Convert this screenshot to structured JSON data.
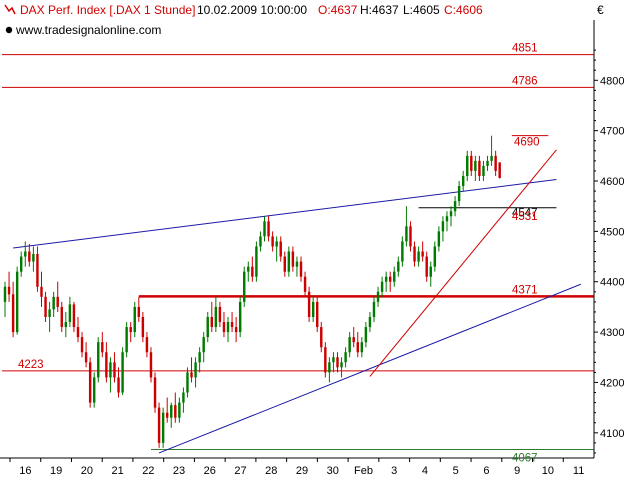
{
  "header": {
    "instrument": "DAX Perf. Index [.DAX  1 Stunde]",
    "datetime": "10.02.2009 10:00:00",
    "open_label": "O:4637",
    "high_label": "H:4637",
    "low_label": "L:4605",
    "close_label": "C:4606",
    "source": "www.tradesignalonline.com",
    "currency": "€"
  },
  "colors": {
    "up_candle": "#007a00",
    "down_candle": "#cc0000",
    "support_line": "#d00000",
    "trend_blue": "#1a1aa8",
    "bottom_line": "#2e7d2e",
    "axis": "#000000",
    "header_red": "#d00000"
  },
  "chart_data": {
    "type": "candlestick",
    "timeframe": "1 Stunde",
    "ylim": [
      4050,
      4880
    ],
    "yticks": [
      4100,
      4200,
      4300,
      4400,
      4500,
      4600,
      4700,
      4800
    ],
    "xticks": [
      "16",
      "19",
      "20",
      "21",
      "22",
      "23",
      "26",
      "27",
      "28",
      "29",
      "30",
      "Feb",
      "3",
      "4",
      "5",
      "6",
      "9",
      "10",
      "11"
    ],
    "levels": [
      {
        "value": 4851,
        "label": "4851"
      },
      {
        "value": 4786,
        "label": "4786"
      },
      {
        "value": 4690,
        "label": "4690"
      },
      {
        "value": 4547,
        "label": "4547"
      },
      {
        "value": 4531,
        "label": "4531"
      },
      {
        "value": 4371,
        "label": "4371"
      },
      {
        "value": 4223,
        "label": "4223"
      },
      {
        "value": 4067,
        "label": "4067"
      }
    ],
    "trendlines": [
      {
        "from": {
          "bar": 2,
          "price": 4467
        },
        "to": {
          "bar": 136,
          "price": 4603
        }
      },
      {
        "from": {
          "bar": 38,
          "price": 4060
        },
        "to": {
          "bar": 142,
          "price": 4395
        }
      },
      {
        "from": {
          "bar": 90,
          "price": 4212
        },
        "to": {
          "bar": 136,
          "price": 4662
        }
      }
    ],
    "series": [
      {
        "ohlc": [
          [
            4360,
            4400,
            4330,
            4390
          ],
          [
            4390,
            4420,
            4360,
            4375
          ],
          [
            4375,
            4400,
            4290,
            4300
          ],
          [
            4300,
            4430,
            4295,
            4420
          ],
          [
            4420,
            4460,
            4410,
            4450
          ],
          [
            4450,
            4480,
            4430,
            4460
          ],
          [
            4460,
            4475,
            4430,
            4440
          ],
          [
            4440,
            4470,
            4420,
            4455
          ],
          [
            4455,
            4470,
            4380,
            4390
          ],
          [
            4390,
            4420,
            4350,
            4370
          ],
          [
            4370,
            4380,
            4320,
            4330
          ],
          [
            4330,
            4360,
            4300,
            4345
          ],
          [
            4345,
            4380,
            4330,
            4370
          ],
          [
            4370,
            4400,
            4340,
            4350
          ],
          [
            4350,
            4360,
            4300,
            4310
          ],
          [
            4310,
            4340,
            4290,
            4320
          ],
          [
            4320,
            4370,
            4310,
            4355
          ],
          [
            4355,
            4360,
            4300,
            4310
          ],
          [
            4310,
            4330,
            4280,
            4290
          ],
          [
            4290,
            4300,
            4250,
            4260
          ],
          [
            4260,
            4280,
            4230,
            4240
          ],
          [
            4240,
            4250,
            4150,
            4160
          ],
          [
            4160,
            4220,
            4150,
            4210
          ],
          [
            4210,
            4290,
            4200,
            4280
          ],
          [
            4280,
            4300,
            4250,
            4260
          ],
          [
            4260,
            4280,
            4200,
            4210
          ],
          [
            4210,
            4250,
            4180,
            4240
          ],
          [
            4240,
            4260,
            4200,
            4210
          ],
          [
            4210,
            4230,
            4170,
            4180
          ],
          [
            4180,
            4270,
            4175,
            4260
          ],
          [
            4260,
            4320,
            4250,
            4310
          ],
          [
            4310,
            4320,
            4280,
            4300
          ],
          [
            4300,
            4360,
            4290,
            4350
          ],
          [
            4350,
            4370,
            4320,
            4330
          ],
          [
            4330,
            4340,
            4280,
            4290
          ],
          [
            4290,
            4300,
            4250,
            4260
          ],
          [
            4260,
            4270,
            4200,
            4210
          ],
          [
            4210,
            4220,
            4140,
            4150
          ],
          [
            4150,
            4160,
            4070,
            4080
          ],
          [
            4080,
            4150,
            4070,
            4140
          ],
          [
            4140,
            4170,
            4120,
            4130
          ],
          [
            4130,
            4160,
            4110,
            4155
          ],
          [
            4155,
            4180,
            4120,
            4130
          ],
          [
            4130,
            4170,
            4120,
            4160
          ],
          [
            4160,
            4190,
            4140,
            4180
          ],
          [
            4180,
            4230,
            4170,
            4220
          ],
          [
            4220,
            4250,
            4200,
            4210
          ],
          [
            4210,
            4250,
            4190,
            4240
          ],
          [
            4240,
            4270,
            4220,
            4260
          ],
          [
            4260,
            4300,
            4240,
            4290
          ],
          [
            4290,
            4340,
            4280,
            4330
          ],
          [
            4330,
            4360,
            4300,
            4310
          ],
          [
            4310,
            4370,
            4300,
            4350
          ],
          [
            4350,
            4360,
            4310,
            4320
          ],
          [
            4320,
            4340,
            4290,
            4300
          ],
          [
            4300,
            4330,
            4280,
            4320
          ],
          [
            4320,
            4340,
            4300,
            4310
          ],
          [
            4310,
            4330,
            4280,
            4300
          ],
          [
            4300,
            4370,
            4290,
            4360
          ],
          [
            4360,
            4430,
            4350,
            4420
          ],
          [
            4420,
            4440,
            4400,
            4430
          ],
          [
            4430,
            4450,
            4400,
            4410
          ],
          [
            4410,
            4480,
            4400,
            4470
          ],
          [
            4470,
            4500,
            4460,
            4490
          ],
          [
            4490,
            4530,
            4480,
            4520
          ],
          [
            4520,
            4530,
            4480,
            4490
          ],
          [
            4490,
            4500,
            4460,
            4470
          ],
          [
            4470,
            4490,
            4440,
            4480
          ],
          [
            4480,
            4490,
            4440,
            4450
          ],
          [
            4450,
            4460,
            4410,
            4420
          ],
          [
            4420,
            4470,
            4410,
            4460
          ],
          [
            4460,
            4470,
            4420,
            4430
          ],
          [
            4430,
            4450,
            4410,
            4440
          ],
          [
            4440,
            4450,
            4400,
            4410
          ],
          [
            4410,
            4420,
            4370,
            4380
          ],
          [
            4380,
            4390,
            4320,
            4330
          ],
          [
            4330,
            4370,
            4320,
            4360
          ],
          [
            4360,
            4370,
            4300,
            4310
          ],
          [
            4310,
            4320,
            4260,
            4270
          ],
          [
            4270,
            4280,
            4210,
            4220
          ],
          [
            4220,
            4250,
            4200,
            4240
          ],
          [
            4240,
            4260,
            4220,
            4250
          ],
          [
            4250,
            4260,
            4220,
            4230
          ],
          [
            4230,
            4250,
            4210,
            4240
          ],
          [
            4240,
            4270,
            4230,
            4260
          ],
          [
            4260,
            4300,
            4250,
            4290
          ],
          [
            4290,
            4310,
            4270,
            4280
          ],
          [
            4280,
            4300,
            4250,
            4260
          ],
          [
            4260,
            4290,
            4250,
            4280
          ],
          [
            4280,
            4320,
            4270,
            4310
          ],
          [
            4310,
            4340,
            4300,
            4330
          ],
          [
            4330,
            4370,
            4320,
            4360
          ],
          [
            4360,
            4390,
            4350,
            4380
          ],
          [
            4380,
            4410,
            4370,
            4400
          ],
          [
            4400,
            4420,
            4380,
            4410
          ],
          [
            4410,
            4420,
            4380,
            4400
          ],
          [
            4400,
            4430,
            4390,
            4420
          ],
          [
            4420,
            4450,
            4410,
            4440
          ],
          [
            4440,
            4490,
            4430,
            4480
          ],
          [
            4480,
            4550,
            4470,
            4510
          ],
          [
            4510,
            4520,
            4460,
            4470
          ],
          [
            4470,
            4480,
            4430,
            4440
          ],
          [
            4440,
            4470,
            4430,
            4460
          ],
          [
            4460,
            4480,
            4440,
            4450
          ],
          [
            4450,
            4460,
            4400,
            4410
          ],
          [
            4410,
            4440,
            4390,
            4430
          ],
          [
            4430,
            4480,
            4420,
            4470
          ],
          [
            4470,
            4510,
            4460,
            4500
          ],
          [
            4500,
            4530,
            4480,
            4520
          ],
          [
            4520,
            4540,
            4500,
            4530
          ],
          [
            4530,
            4550,
            4510,
            4540
          ],
          [
            4540,
            4570,
            4530,
            4560
          ],
          [
            4560,
            4600,
            4550,
            4590
          ],
          [
            4590,
            4620,
            4580,
            4610
          ],
          [
            4610,
            4660,
            4600,
            4650
          ],
          [
            4650,
            4660,
            4610,
            4620
          ],
          [
            4620,
            4650,
            4600,
            4640
          ],
          [
            4640,
            4650,
            4600,
            4610
          ],
          [
            4610,
            4640,
            4600,
            4630
          ],
          [
            4630,
            4650,
            4620,
            4640
          ],
          [
            4640,
            4690,
            4630,
            4650
          ],
          [
            4650,
            4660,
            4610,
            4620
          ],
          [
            4637,
            4637,
            4605,
            4606
          ]
        ]
      }
    ]
  }
}
